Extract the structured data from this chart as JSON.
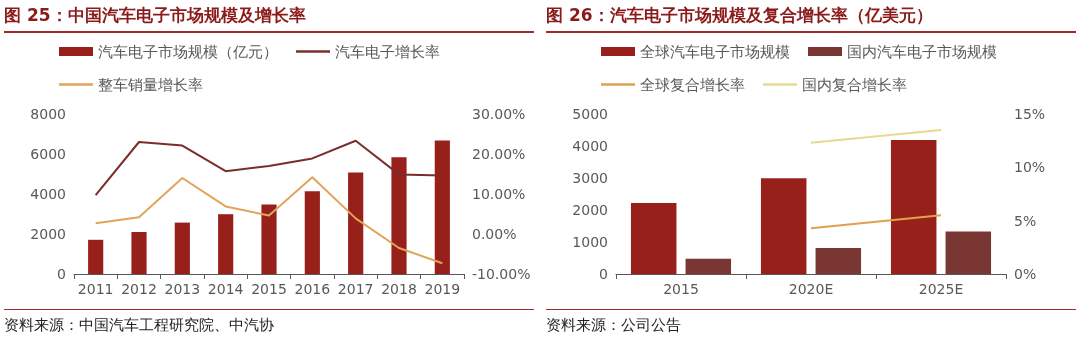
{
  "chart_data": [
    {
      "type": "bar",
      "title": "图 25：中国汽车电子市场规模及增长率",
      "categories": [
        "2011",
        "2012",
        "2013",
        "2014",
        "2015",
        "2016",
        "2017",
        "2018",
        "2019"
      ],
      "series": [
        {
          "name": "汽车电子市场规模（亿元）",
          "color": "#97201b",
          "values": [
            1710,
            2100,
            2570,
            2990,
            3480,
            4140,
            5070,
            5840,
            6670
          ]
        },
        {
          "name": "汽车电子增长率",
          "type": "line",
          "axis": "y2",
          "color": "#7b2d2b",
          "values": [
            9.7,
            23.0,
            22.1,
            15.7,
            17.0,
            18.9,
            23.3,
            14.9,
            14.6
          ]
        },
        {
          "name": "整车销量增长率",
          "type": "line",
          "axis": "y2",
          "color": "#e0a45a",
          "values": [
            2.7,
            4.2,
            14.0,
            6.9,
            4.6,
            14.2,
            3.9,
            -3.5,
            -7.3
          ]
        }
      ],
      "ylim": [
        0,
        8000
      ],
      "yticks": [
        0,
        2000,
        4000,
        6000,
        8000
      ],
      "y2lim": [
        -10,
        30
      ],
      "y2ticks": [
        {
          "value": -10,
          "label": "-10.00%"
        },
        {
          "value": 0,
          "label": "0.00%"
        },
        {
          "value": 10,
          "label": "10.00%"
        },
        {
          "value": 20,
          "label": "20.00%"
        },
        {
          "value": 30,
          "label": "30.00%"
        }
      ],
      "legend": "top",
      "marker": "none",
      "annotations": [
        "资料来源：中国汽车工程研究院、中汽协"
      ]
    },
    {
      "type": "bar",
      "title": "图 26：汽车电子市场规模及复合增长率（亿美元）",
      "categories": [
        "2015",
        "2020E",
        "2025E"
      ],
      "series": [
        {
          "name": "全球汽车电子市场规模",
          "color": "#97201b",
          "values": [
            2220,
            2990,
            4190
          ]
        },
        {
          "name": "国内汽车电子市场规模",
          "color": "#7a3633",
          "values": [
            480,
            810,
            1330
          ]
        },
        {
          "name": "全球复合增长率",
          "type": "line",
          "axis": "y2",
          "color": "#e0a050",
          "values": [
            null,
            4.3,
            5.5
          ]
        },
        {
          "name": "国内复合增长率",
          "type": "line",
          "axis": "y2",
          "color": "#e8d890",
          "values": [
            null,
            12.3,
            13.5
          ]
        }
      ],
      "ylim": [
        0,
        5000
      ],
      "yticks": [
        0,
        1000,
        2000,
        3000,
        4000,
        5000
      ],
      "y2lim": [
        0,
        15
      ],
      "y2ticks": [
        {
          "value": 0,
          "label": "0%"
        },
        {
          "value": 5,
          "label": "5%"
        },
        {
          "value": 10,
          "label": "10%"
        },
        {
          "value": 15,
          "label": "15%"
        }
      ],
      "legend": "top",
      "marker": "none",
      "annotations": [
        "资料来源：公司公告"
      ]
    }
  ]
}
